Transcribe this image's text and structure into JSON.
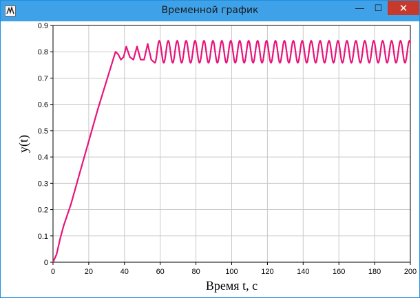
{
  "window": {
    "title": "Временной график",
    "buttons": {
      "minimize": "—",
      "maximize": "☐",
      "close": "✕"
    }
  },
  "colors": {
    "titlebar": "#3fa2e8",
    "close_button": "#c7392b",
    "series_line": "#e8137a",
    "grid": "#c8c8c8"
  },
  "chart_data": {
    "type": "line",
    "title": "",
    "xlabel": "Время t, c",
    "ylabel": "y(t)",
    "xlim": [
      0,
      200
    ],
    "ylim": [
      0,
      0.9
    ],
    "x_ticks": [
      "0",
      "20",
      "40",
      "60",
      "80",
      "100",
      "120",
      "140",
      "160",
      "180",
      "200"
    ],
    "y_ticks": [
      "0",
      "0.1",
      "0.2",
      "0.3",
      "0.4",
      "0.5",
      "0.6",
      "0.7",
      "0.8",
      "0.9"
    ],
    "grid": true,
    "legend": "none",
    "series": [
      {
        "x": [
          0,
          2,
          4,
          6,
          8,
          10,
          15,
          20,
          25,
          30,
          35,
          36.5,
          38,
          39.5,
          41,
          43,
          45,
          47,
          49,
          51,
          53,
          55,
          57,
          60,
          70,
          80,
          90,
          100,
          110,
          120,
          130,
          140,
          150,
          160,
          170,
          180,
          190,
          200
        ],
        "y": [
          0,
          0.03,
          0.09,
          0.14,
          0.18,
          0.22,
          0.34,
          0.46,
          0.58,
          0.69,
          0.8,
          0.79,
          0.77,
          0.78,
          0.82,
          0.78,
          0.77,
          0.82,
          0.77,
          0.77,
          0.83,
          0.77,
          0.76,
          0.8,
          0.8,
          0.8,
          0.8,
          0.8,
          0.8,
          0.8,
          0.8,
          0.8,
          0.8,
          0.8,
          0.8,
          0.8,
          0.8,
          0.755
        ],
        "oscillation": {
          "center": 0.8,
          "amplitude": 0.042,
          "period": 5.0,
          "from": 57
        }
      }
    ]
  }
}
